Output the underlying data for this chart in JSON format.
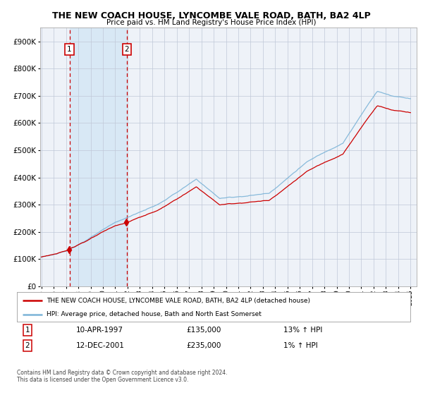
{
  "title": "THE NEW COACH HOUSE, LYNCOMBE VALE ROAD, BATH, BA2 4LP",
  "subtitle": "Price paid vs. HM Land Registry's House Price Index (HPI)",
  "sale1_date": "10-APR-1997",
  "sale1_price": 135000,
  "sale1_hpi": "13% ↑ HPI",
  "sale2_date": "12-DEC-2001",
  "sale2_price": 235000,
  "sale2_hpi": "1% ↑ HPI",
  "legend_line1": "THE NEW COACH HOUSE, LYNCOMBE VALE ROAD, BATH, BA2 4LP (detached house)",
  "legend_line2": "HPI: Average price, detached house, Bath and North East Somerset",
  "footer": "Contains HM Land Registry data © Crown copyright and database right 2024.\nThis data is licensed under the Open Government Licence v3.0.",
  "hpi_color": "#7cb4d8",
  "price_color": "#cc0000",
  "background_color": "#ffffff",
  "plot_bg_color": "#eef2f8",
  "shade_color": "#d8e8f5",
  "grid_color": "#c0c8d8",
  "dashed_line_color": "#cc0000",
  "ylim": [
    0,
    950000
  ],
  "yticks": [
    0,
    100000,
    200000,
    300000,
    400000,
    500000,
    600000,
    700000,
    800000,
    900000
  ],
  "sale1_year": 1997.28,
  "sale2_year": 2001.95
}
